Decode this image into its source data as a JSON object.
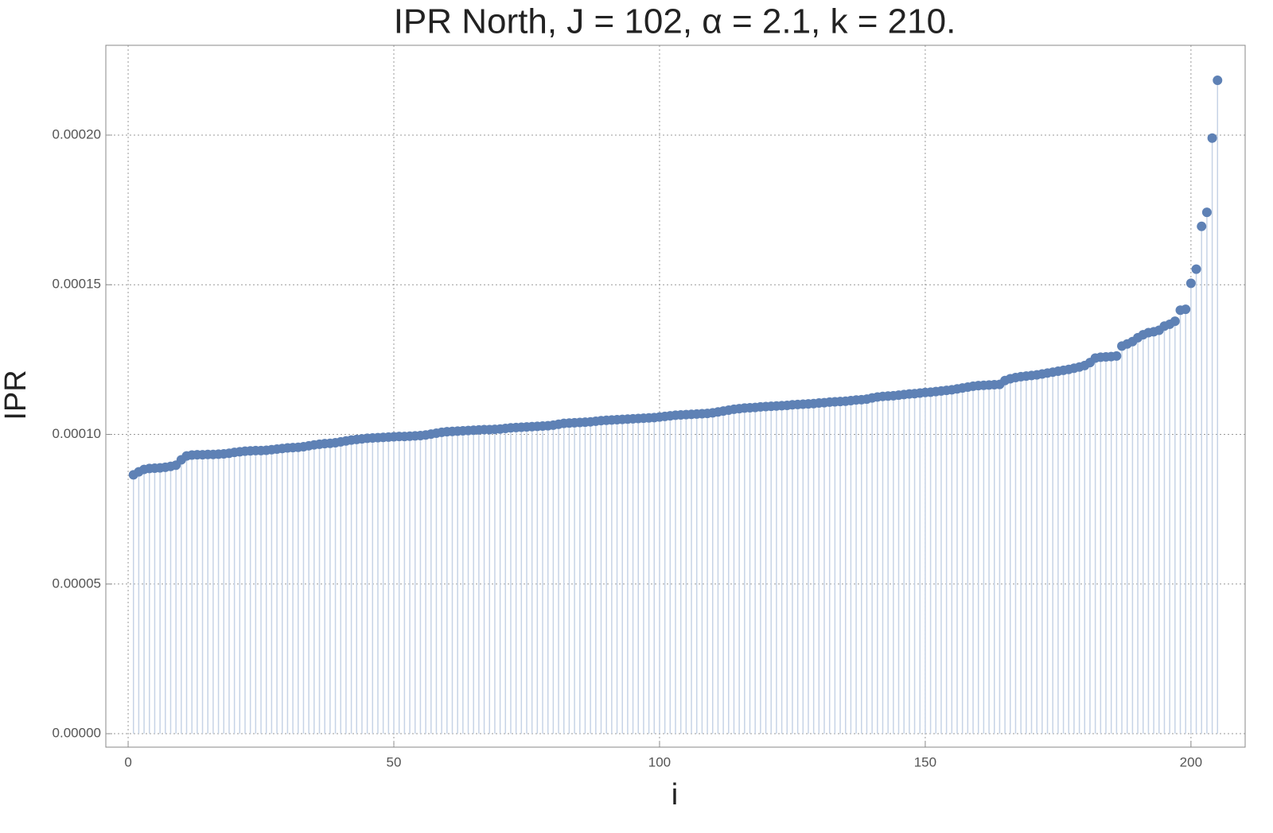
{
  "chart_data": {
    "type": "stem",
    "title": "IPR North, J = 102, α = 2.1, k = 210.",
    "x_label": "i",
    "y_label": "IPR",
    "grid": true,
    "xlim": [
      -4.2,
      210.2
    ],
    "ylim": [
      -4.5e-06,
      0.00023
    ],
    "xticks": [
      0,
      50,
      100,
      150,
      200
    ],
    "yticks": [
      {
        "value": 0,
        "label": "0.00000"
      },
      {
        "value": 5e-05,
        "label": "0.00005"
      },
      {
        "value": 0.0001,
        "label": "0.00010"
      },
      {
        "value": 0.00015,
        "label": "0.00015"
      },
      {
        "value": 0.0002,
        "label": "0.00020"
      }
    ],
    "series": [
      {
        "name": "IPR",
        "color": "#5e81b5",
        "stem_color": "#c6d3e6",
        "x": [
          1,
          2,
          3,
          4,
          5,
          6,
          7,
          8,
          9,
          10,
          11,
          12,
          13,
          14,
          15,
          16,
          17,
          18,
          19,
          20,
          21,
          22,
          23,
          24,
          25,
          26,
          27,
          28,
          29,
          30,
          31,
          32,
          33,
          34,
          35,
          36,
          37,
          38,
          39,
          40,
          41,
          42,
          43,
          44,
          45,
          46,
          47,
          48,
          49,
          50,
          51,
          52,
          53,
          54,
          55,
          56,
          57,
          58,
          59,
          60,
          61,
          62,
          63,
          64,
          65,
          66,
          67,
          68,
          69,
          70,
          71,
          72,
          73,
          74,
          75,
          76,
          77,
          78,
          79,
          80,
          81,
          82,
          83,
          84,
          85,
          86,
          87,
          88,
          89,
          90,
          91,
          92,
          93,
          94,
          95,
          96,
          97,
          98,
          99,
          100,
          101,
          102,
          103,
          104,
          105,
          106,
          107,
          108,
          109,
          110,
          111,
          112,
          113,
          114,
          115,
          116,
          117,
          118,
          119,
          120,
          121,
          122,
          123,
          124,
          125,
          126,
          127,
          128,
          129,
          130,
          131,
          132,
          133,
          134,
          135,
          136,
          137,
          138,
          139,
          140,
          141,
          142,
          143,
          144,
          145,
          146,
          147,
          148,
          149,
          150,
          151,
          152,
          153,
          154,
          155,
          156,
          157,
          158,
          159,
          160,
          161,
          162,
          163,
          164,
          165,
          166,
          167,
          168,
          169,
          170,
          171,
          172,
          173,
          174,
          175,
          176,
          177,
          178,
          179,
          180,
          181,
          182,
          183,
          184,
          185,
          186,
          187,
          188,
          189,
          190,
          191,
          192,
          193,
          194,
          195,
          196,
          197,
          198,
          199,
          200,
          201,
          202,
          203,
          204,
          205
        ],
        "values": [
          8.65e-05,
          8.75e-05,
          8.83e-05,
          8.86e-05,
          8.87e-05,
          8.88e-05,
          8.9e-05,
          8.93e-05,
          8.97e-05,
          9.15e-05,
          9.28e-05,
          9.31e-05,
          9.32e-05,
          9.32e-05,
          9.33e-05,
          9.33e-05,
          9.34e-05,
          9.35e-05,
          9.37e-05,
          9.4e-05,
          9.42e-05,
          9.44e-05,
          9.45e-05,
          9.46e-05,
          9.46e-05,
          9.47e-05,
          9.49e-05,
          9.51e-05,
          9.53e-05,
          9.55e-05,
          9.56e-05,
          9.57e-05,
          9.59e-05,
          9.62e-05,
          9.65e-05,
          9.67e-05,
          9.69e-05,
          9.7e-05,
          9.72e-05,
          9.75e-05,
          9.78e-05,
          9.81e-05,
          9.83e-05,
          9.85e-05,
          9.87e-05,
          9.88e-05,
          9.89e-05,
          9.9e-05,
          9.91e-05,
          9.92e-05,
          9.93e-05,
          9.93e-05,
          9.94e-05,
          9.95e-05,
          9.96e-05,
          9.98e-05,
          0.0001001,
          0.0001004,
          0.0001007,
          0.0001009,
          0.000101,
          0.0001011,
          0.0001012,
          0.0001013,
          0.0001014,
          0.0001015,
          0.0001016,
          0.0001016,
          0.0001017,
          0.0001018,
          0.000102,
          0.0001022,
          0.0001023,
          0.0001024,
          0.0001025,
          0.0001026,
          0.0001027,
          0.0001028,
          0.0001029,
          0.0001031,
          0.0001034,
          0.0001037,
          0.0001038,
          0.0001039,
          0.000104,
          0.0001041,
          0.0001042,
          0.0001044,
          0.0001046,
          0.0001047,
          0.0001048,
          0.0001049,
          0.000105,
          0.0001051,
          0.0001052,
          0.0001053,
          0.0001054,
          0.0001055,
          0.0001056,
          0.0001058,
          0.000106,
          0.0001062,
          0.0001064,
          0.0001065,
          0.0001066,
          0.0001067,
          0.0001068,
          0.0001069,
          0.000107,
          0.0001072,
          0.0001075,
          0.0001078,
          0.0001081,
          0.0001084,
          0.0001086,
          0.0001088,
          0.0001089,
          0.000109,
          0.0001092,
          0.0001093,
          0.0001094,
          0.0001095,
          0.0001096,
          0.0001097,
          0.0001099,
          0.00011,
          0.0001101,
          0.0001102,
          0.0001103,
          0.0001105,
          0.0001106,
          0.0001108,
          0.0001109,
          0.000111,
          0.0001111,
          0.0001113,
          0.0001115,
          0.0001116,
          0.0001118,
          0.0001122,
          0.0001125,
          0.0001127,
          0.0001128,
          0.0001129,
          0.0001131,
          0.0001133,
          0.0001135,
          0.0001136,
          0.0001138,
          0.000114,
          0.0001141,
          0.0001143,
          0.0001145,
          0.0001147,
          0.0001149,
          0.0001152,
          0.0001155,
          0.0001158,
          0.0001161,
          0.0001163,
          0.0001164,
          0.0001165,
          0.0001166,
          0.0001167,
          0.000118,
          0.0001186,
          0.000119,
          0.0001193,
          0.0001195,
          0.0001197,
          0.0001199,
          0.0001202,
          0.0001205,
          0.0001208,
          0.0001211,
          0.0001214,
          0.0001217,
          0.0001221,
          0.0001225,
          0.000123,
          0.000124,
          0.0001255,
          0.0001258,
          0.0001259,
          0.000126,
          0.0001262,
          0.0001295,
          0.0001302,
          0.000131,
          0.0001323,
          0.0001333,
          0.000134,
          0.0001343,
          0.0001348,
          0.0001362,
          0.0001368,
          0.0001378,
          0.0001415,
          0.0001418,
          0.0001505,
          0.0001552,
          0.0001695,
          0.0001742,
          0.000199,
          0.0002183
        ]
      }
    ]
  }
}
